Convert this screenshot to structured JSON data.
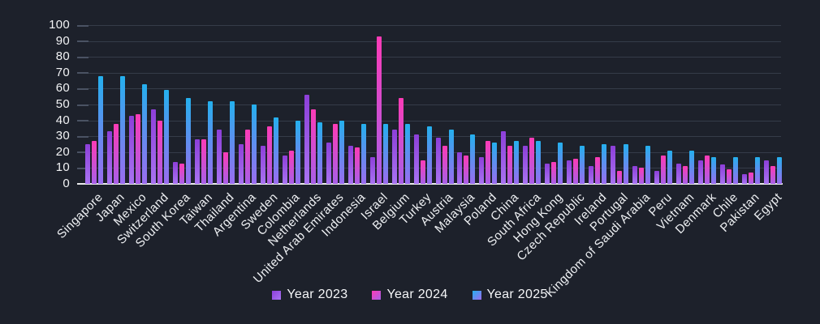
{
  "chart_data": {
    "type": "bar",
    "title": "",
    "xlabel": "",
    "ylabel": "",
    "ylim": [
      0,
      100
    ],
    "yticks": [
      0,
      10,
      20,
      30,
      40,
      50,
      60,
      70,
      80,
      90,
      100
    ],
    "grid": true,
    "legend_position": "bottom",
    "categories": [
      "Singapore",
      "Japan",
      "Mexico",
      "Switzerland",
      "South Korea",
      "Taiwan",
      "Thailand",
      "Argentina",
      "Sweden",
      "Colombia",
      "Netherlands",
      "United Arab Emirates",
      "Indonesia",
      "Israel",
      "Belgium",
      "Turkey",
      "Austria",
      "Malaysia",
      "Poland",
      "China",
      "South Africa",
      "Hong Kong",
      "Czech Republic",
      "Ireland",
      "Portugal",
      "Kingdom of Saudi Arabia",
      "Peru",
      "Vietnam",
      "Denmark",
      "Chile",
      "Pakistan",
      "Egypt"
    ],
    "series": [
      {
        "name": "Year 2023",
        "color_top": "#8d3fd9",
        "color_bottom": "#a873f2",
        "values": [
          25,
          33,
          43,
          47,
          14,
          28,
          34,
          25,
          24,
          18,
          56,
          26,
          24,
          17,
          34,
          31,
          29,
          20,
          17,
          33,
          24,
          13,
          15,
          11,
          24,
          11,
          8,
          13,
          15,
          12,
          6,
          15
        ]
      },
      {
        "name": "Year 2024",
        "color_top": "#fc3bb6",
        "color_bottom": "#a85fe8",
        "values": [
          27,
          38,
          44,
          40,
          13,
          28,
          20,
          34,
          36,
          21,
          47,
          38,
          23,
          93,
          54,
          15,
          24,
          18,
          27,
          24,
          29,
          14,
          16,
          17,
          8,
          10,
          18,
          11,
          18,
          9,
          7,
          11
        ]
      },
      {
        "name": "Year 2025",
        "color_top": "#24b0ee",
        "color_bottom": "#9b6cf0",
        "values": [
          68,
          68,
          63,
          59,
          54,
          52,
          52,
          50,
          42,
          40,
          39,
          40,
          38,
          38,
          38,
          36,
          34,
          31,
          26,
          27,
          27,
          26,
          24,
          25,
          25,
          24,
          21,
          21,
          17,
          17,
          17,
          17
        ]
      }
    ]
  },
  "colors": {
    "background": "#1d212b",
    "gridline": "#353c49",
    "tick": "#4a5263",
    "baseline": "#e9eaec",
    "text": "#f2f3f5"
  }
}
